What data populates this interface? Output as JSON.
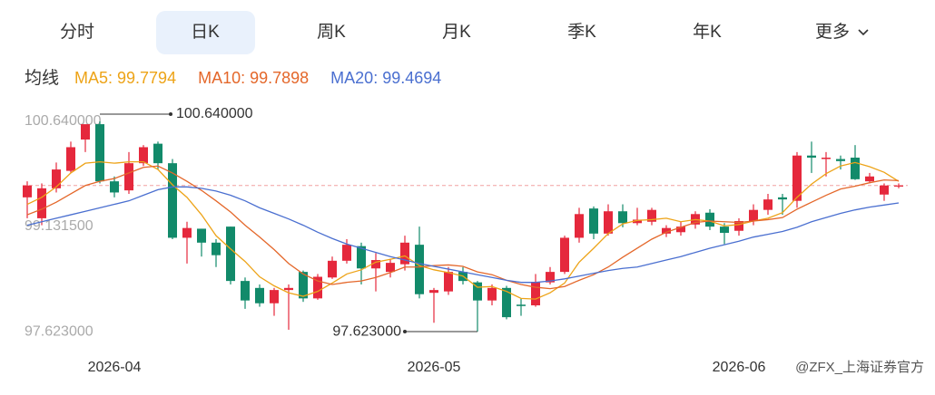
{
  "tabs": {
    "items": [
      "分时",
      "日K",
      "周K",
      "月K",
      "季K",
      "年K",
      "更多"
    ],
    "active": 1
  },
  "indicator_label": "均线",
  "watermark": "@ZFX_上海证券官方",
  "chart_data": {
    "type": "candlestick",
    "categories": [
      null,
      null,
      null,
      null,
      null,
      null,
      "2026-04",
      null,
      null,
      null,
      null,
      null,
      null,
      null,
      null,
      null,
      null,
      null,
      null,
      null,
      null,
      null,
      null,
      null,
      null,
      null,
      null,
      null,
      "2026-05",
      null,
      null,
      null,
      null,
      null,
      null,
      null,
      null,
      null,
      null,
      null,
      null,
      null,
      null,
      null,
      null,
      null,
      null,
      null,
      null,
      "2026-06",
      null,
      null,
      null,
      null,
      null,
      null,
      null,
      null,
      null,
      null,
      null
    ],
    "open": [
      99.55,
      99.25,
      99.68,
      99.93,
      100.38,
      100.6,
      99.78,
      99.65,
      100.04,
      100.32,
      100.04,
      98.97,
      99.1,
      98.9,
      99.13,
      98.35,
      98.25,
      98.03,
      98.22,
      98.48,
      98.1,
      98.4,
      98.64,
      98.85,
      98.53,
      98.48,
      98.59,
      98.87,
      98.18,
      98.2,
      98.48,
      98.33,
      98.07,
      98.25,
      98.01,
      98.0,
      98.33,
      98.48,
      98.97,
      99.39,
      99.03,
      99.35,
      99.18,
      99.2,
      99.03,
      99.05,
      99.16,
      99.33,
      99.13,
      99.07,
      99.21,
      99.37,
      99.55,
      99.5,
      100.15,
      100.1,
      100.1,
      100.12,
      99.78,
      99.59,
      99.71
    ],
    "high": [
      99.78,
      99.75,
      100.05,
      100.35,
      100.58,
      100.64,
      99.85,
      100.2,
      100.3,
      100.35,
      100.1,
      99.2,
      99.1,
      98.95,
      99.13,
      98.4,
      98.3,
      98.25,
      98.3,
      98.5,
      98.45,
      98.7,
      98.95,
      98.9,
      98.75,
      98.67,
      99.0,
      99.13,
      98.25,
      98.55,
      98.55,
      98.35,
      98.3,
      98.28,
      98.1,
      98.45,
      98.55,
      99.0,
      99.4,
      99.42,
      99.45,
      99.45,
      99.4,
      99.4,
      99.15,
      99.2,
      99.35,
      99.38,
      99.18,
      99.25,
      99.45,
      99.6,
      99.6,
      100.2,
      100.35,
      100.2,
      100.15,
      100.3,
      99.9,
      99.75,
      99.75
    ],
    "low": [
      99.25,
      99.15,
      99.62,
      99.9,
      100.2,
      99.75,
      99.55,
      99.6,
      100.0,
      99.95,
      98.95,
      98.6,
      98.7,
      98.55,
      98.3,
      97.95,
      97.98,
      97.85,
      97.65,
      98.05,
      98.08,
      98.38,
      98.6,
      98.3,
      98.2,
      98.4,
      98.5,
      98.1,
      97.75,
      98.15,
      98.3,
      97.623,
      98.0,
      97.8,
      97.85,
      97.98,
      98.3,
      98.45,
      98.9,
      98.95,
      99.0,
      99.12,
      99.15,
      99.15,
      98.98,
      99.0,
      99.1,
      99.08,
      98.88,
      99.0,
      99.15,
      99.3,
      99.3,
      99.4,
      99.9,
      99.85,
      99.95,
      99.8,
      99.75,
      99.5,
      99.68
    ],
    "close": [
      99.72,
      99.68,
      99.95,
      100.27,
      100.6,
      99.78,
      99.62,
      100.04,
      100.27,
      100.04,
      98.97,
      99.11,
      98.9,
      98.72,
      98.35,
      98.07,
      98.03,
      98.22,
      98.25,
      98.1,
      98.41,
      98.64,
      98.87,
      98.53,
      98.65,
      98.61,
      98.9,
      98.16,
      98.22,
      98.48,
      98.35,
      98.07,
      98.25,
      97.83,
      97.99,
      98.33,
      98.48,
      98.97,
      99.31,
      99.03,
      99.35,
      99.18,
      99.23,
      99.37,
      99.11,
      99.13,
      99.31,
      99.13,
      99.04,
      99.21,
      99.37,
      99.52,
      99.52,
      100.15,
      100.12,
      100.12,
      100.07,
      99.81,
      99.85,
      99.72,
      99.72
    ],
    "up_color": "#e5283c",
    "down_color": "#128a6a",
    "series": [
      {
        "name": "MA5: 99.7794",
        "color": "#eda317",
        "values": [
          99.45,
          99.55,
          99.7,
          99.9,
          100.04,
          100.06,
          100.04,
          100.06,
          100.06,
          99.95,
          99.73,
          99.55,
          99.3,
          99.0,
          98.81,
          98.63,
          98.41,
          98.28,
          98.18,
          98.13,
          98.2,
          98.32,
          98.45,
          98.51,
          98.62,
          98.66,
          98.71,
          98.57,
          98.51,
          98.47,
          98.42,
          98.26,
          98.27,
          98.2,
          98.1,
          98.09,
          98.18,
          98.32,
          98.62,
          98.82,
          99.03,
          99.17,
          99.22,
          99.23,
          99.25,
          99.2,
          99.23,
          99.21,
          99.14,
          99.16,
          99.21,
          99.25,
          99.33,
          99.55,
          99.74,
          99.89,
          100.0,
          100.05,
          99.99,
          99.91,
          99.78
        ]
      },
      {
        "name": "MA10: 99.7898",
        "color": "#e4672a",
        "values": [
          99.3,
          99.38,
          99.48,
          99.6,
          99.72,
          99.78,
          99.82,
          99.9,
          99.98,
          100.0,
          99.9,
          99.78,
          99.65,
          99.5,
          99.34,
          99.15,
          98.98,
          98.8,
          98.6,
          98.45,
          98.35,
          98.3,
          98.33,
          98.35,
          98.4,
          98.47,
          98.55,
          98.55,
          98.57,
          98.58,
          98.56,
          98.48,
          98.44,
          98.36,
          98.3,
          98.26,
          98.24,
          98.27,
          98.36,
          98.44,
          98.55,
          98.69,
          98.82,
          98.95,
          99.05,
          99.12,
          99.19,
          99.21,
          99.2,
          99.19,
          99.21,
          99.23,
          99.26,
          99.38,
          99.48,
          99.58,
          99.67,
          99.71,
          99.76,
          99.8,
          99.79
        ]
      },
      {
        "name": "MA20: 99.4694",
        "color": "#4a6fd0",
        "values": [
          99.15,
          99.2,
          99.25,
          99.3,
          99.35,
          99.4,
          99.45,
          99.5,
          99.58,
          99.66,
          99.7,
          99.7,
          99.68,
          99.64,
          99.58,
          99.5,
          99.4,
          99.32,
          99.24,
          99.15,
          99.05,
          98.96,
          98.88,
          98.82,
          98.76,
          98.7,
          98.65,
          98.6,
          98.56,
          98.52,
          98.48,
          98.44,
          98.4,
          98.36,
          98.33,
          98.33,
          98.35,
          98.38,
          98.42,
          98.46,
          98.5,
          98.53,
          98.55,
          98.6,
          98.65,
          98.7,
          98.76,
          98.82,
          98.87,
          98.92,
          98.98,
          99.02,
          99.06,
          99.12,
          99.2,
          99.26,
          99.32,
          99.37,
          99.41,
          99.44,
          99.47
        ]
      }
    ],
    "ylim": [
      97.5,
      100.8
    ],
    "yticks": [
      {
        "value": 100.64,
        "label": "100.640000"
      },
      {
        "value": 99.1315,
        "label": "99.131500"
      },
      {
        "value": 97.623,
        "label": "97.623000"
      }
    ],
    "ref_line": 99.72,
    "max_label": "100.640000",
    "min_label": "97.623000"
  }
}
